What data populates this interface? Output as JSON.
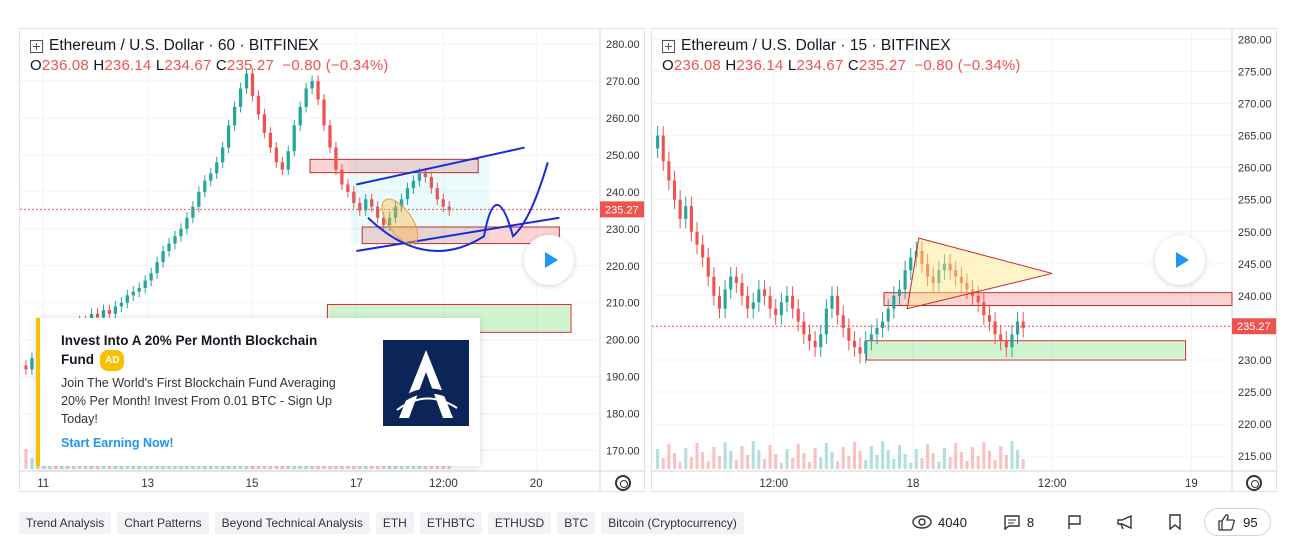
{
  "charts": [
    {
      "id": "left",
      "legend": {
        "title": "Ethereum / U.S. Dollar · 60 · BITFINEX",
        "o_label": "O",
        "o": "236.08",
        "h_label": "H",
        "h": "236.14",
        "l_label": "L",
        "l": "234.67",
        "c_label": "C",
        "c": "235.27",
        "change": "−0.80 (−0.34%)"
      },
      "price_label": "235.27"
    },
    {
      "id": "right",
      "legend": {
        "title": "Ethereum / U.S. Dollar · 15 · BITFINEX",
        "o_label": "O",
        "o": "236.08",
        "h_label": "H",
        "h": "236.14",
        "l_label": "L",
        "l": "234.67",
        "c_label": "C",
        "c": "235.27",
        "change": "−0.80 (−0.34%)"
      },
      "price_label": "235.27"
    }
  ],
  "chart_data": [
    {
      "type": "candlestick",
      "instrument": "Ethereum / U.S. Dollar",
      "interval": "60",
      "exchange": "BITFINEX",
      "ylim": [
        165,
        283
      ],
      "y_ticks": [
        "280.00",
        "270.00",
        "260.00",
        "250.00",
        "240.00",
        "230.00",
        "220.00",
        "210.00",
        "200.00",
        "190.00",
        "180.00",
        "170.00"
      ],
      "y_tick_values": [
        280,
        270,
        260,
        250,
        240,
        230,
        220,
        210,
        200,
        190,
        180,
        170
      ],
      "x_ticks": [
        "11",
        "13",
        "15",
        "17",
        "12:00",
        "20"
      ],
      "x_tick_pos": [
        0.04,
        0.22,
        0.4,
        0.58,
        0.73,
        0.89
      ],
      "last_price": 235.27,
      "close_series": [
        193,
        192,
        195,
        194,
        197,
        199,
        198,
        200,
        203,
        201,
        205,
        204,
        207,
        206,
        208,
        207,
        209,
        210,
        212,
        213,
        214,
        216,
        218,
        221,
        224,
        226,
        228,
        230,
        233,
        236,
        240,
        243,
        245,
        248,
        252,
        258,
        263,
        268,
        272,
        266,
        261,
        256,
        252,
        248,
        246,
        251,
        258,
        263,
        268,
        270,
        265,
        258,
        252,
        246,
        242,
        240,
        237,
        235,
        238,
        236,
        233,
        231,
        233,
        236,
        238,
        241,
        243,
        245,
        244,
        241,
        238,
        236,
        235
      ],
      "zones": [
        {
          "y1": 245.2,
          "y2": 248.8,
          "x1": 0.5,
          "x2": 0.79,
          "color": "#ef5350"
        },
        {
          "y1": 226.0,
          "y2": 230.5,
          "x1": 0.59,
          "x2": 0.93,
          "color": "#ef5350"
        },
        {
          "y1": 202.0,
          "y2": 209.5,
          "x1": 0.53,
          "x2": 0.95,
          "color": "#26a69a"
        }
      ]
    },
    {
      "type": "candlestick",
      "instrument": "Ethereum / U.S. Dollar",
      "interval": "15",
      "exchange": "BITFINEX",
      "ylim": [
        213,
        281
      ],
      "y_ticks": [
        "280.00",
        "275.00",
        "270.00",
        "265.00",
        "260.00",
        "255.00",
        "250.00",
        "245.00",
        "240.00",
        "235.00",
        "230.00",
        "225.00",
        "220.00",
        "215.00"
      ],
      "y_tick_values": [
        280,
        275,
        270,
        265,
        260,
        255,
        250,
        245,
        240,
        235,
        230,
        225,
        220,
        215
      ],
      "x_ticks": [
        "12:00",
        "18",
        "12:00",
        "19"
      ],
      "x_tick_pos": [
        0.21,
        0.45,
        0.69,
        0.93
      ],
      "last_price": 235.27,
      "close_series": [
        263,
        265,
        261,
        258,
        255,
        252,
        254,
        250,
        248,
        246,
        243,
        240,
        238,
        241,
        243,
        242,
        240,
        238,
        239,
        241,
        240,
        238,
        237,
        239,
        240,
        238,
        236,
        234,
        233,
        232,
        234,
        238,
        240,
        237,
        235,
        233,
        232,
        231,
        233,
        234,
        235,
        236,
        238,
        240,
        241,
        244,
        246,
        247,
        245,
        243,
        242,
        244,
        245,
        244,
        243,
        242,
        241,
        240,
        239,
        237,
        236,
        234,
        233,
        232,
        234,
        236,
        235
      ],
      "zones": [
        {
          "y1": 238.5,
          "y2": 240.5,
          "x1": 0.4,
          "x2": 1.0,
          "color": "#ef5350"
        },
        {
          "y1": 230.0,
          "y2": 233.0,
          "x1": 0.37,
          "x2": 0.92,
          "color": "#26a69a"
        }
      ]
    }
  ],
  "ad": {
    "title": "Invest Into A 20% Per Month Blockchain Fund",
    "badge": "AD",
    "body": "Join The World's First Blockchain Fund Averaging 20% Per Month! Invest From 0.01 BTC - Sign Up Today!",
    "cta": "Start Earning Now!"
  },
  "tags": [
    "Trend Analysis",
    "Chart Patterns",
    "Beyond Technical Analysis",
    "ETH",
    "ETHBTC",
    "ETHUSD",
    "BTC",
    "Bitcoin (Cryptocurrency)"
  ],
  "stats": {
    "views": "4040",
    "comments": "8",
    "likes": "95"
  },
  "colors": {
    "up": "#26a69a",
    "down": "#ef5350",
    "accent": "#2196f3",
    "ad_badge": "#f9c000"
  }
}
